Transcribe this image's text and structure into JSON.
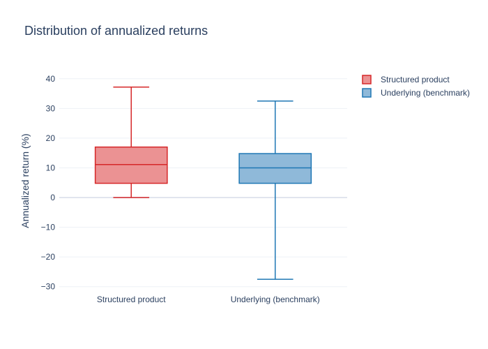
{
  "chart_data": {
    "type": "box",
    "title": "Distribution of annualized returns",
    "xlabel": "",
    "ylabel": "Annualized return (%)",
    "ylim": [
      -31,
      43
    ],
    "yticks": [
      40,
      30,
      20,
      10,
      0,
      -10,
      -20,
      -30
    ],
    "ytick_labels": [
      "40",
      "30",
      "20",
      "10",
      "0",
      "−10",
      "−20",
      "−30"
    ],
    "grid": true,
    "legend_position": "top-right",
    "categories": [
      "Structured product",
      "Underlying (benchmark)"
    ],
    "series": [
      {
        "name": "Structured product",
        "min": 0,
        "q1": 4.8,
        "median": 11.1,
        "q3": 17,
        "max": 37.2,
        "stroke": "#d62728",
        "fill": "#eb9293"
      },
      {
        "name": "Underlying (benchmark)",
        "min": -27.5,
        "q1": 4.8,
        "median": 10,
        "q3": 14.8,
        "max": 32.5,
        "stroke": "#1f77b4",
        "fill": "#8fb9d9"
      }
    ]
  }
}
